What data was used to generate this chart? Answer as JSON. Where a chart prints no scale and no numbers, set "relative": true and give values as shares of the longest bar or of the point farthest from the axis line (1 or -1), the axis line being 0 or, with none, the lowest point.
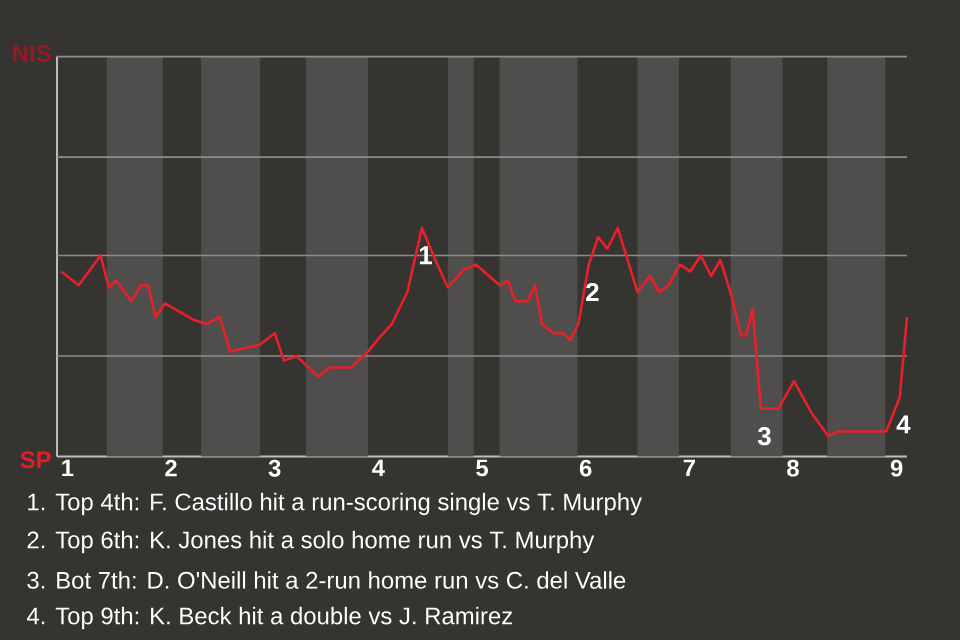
{
  "chart_data": {
    "type": "line",
    "relative": true,
    "series": [
      {
        "color": "#e8202a",
        "values": [
          0.81,
          0.75,
          0.88,
          0.74,
          0.77,
          0.68,
          0.75,
          0.75,
          0.61,
          0.67,
          0.6,
          0.58,
          0.61,
          0.46,
          0.49,
          0.54,
          0.42,
          0.44,
          0.35,
          0.39,
          0.39,
          0.46,
          0.53,
          0.58,
          0.72,
          1,
          0.86,
          0.74,
          0.82,
          0.84,
          0.75,
          0.77,
          0.68,
          0.68,
          0.75,
          0.58,
          0.54,
          0.54,
          0.51,
          0.58,
          0.84,
          0.96,
          0.91,
          1,
          0.72,
          0.79,
          0.72,
          0.75,
          0.84,
          0.81,
          0.88,
          0.79,
          0.86,
          0.7,
          0.53,
          0.53,
          0.65,
          0.21,
          0.21,
          0.33,
          0.19,
          0.09,
          0.11,
          0.11,
          0.26,
          0.61
        ],
        "x": [
          0.94,
          1.11,
          1.32,
          1.4,
          1.47,
          1.62,
          1.71,
          1.78,
          1.85,
          1.94,
          2.21,
          2.34,
          2.47,
          2.57,
          2.86,
          3.0,
          3.09,
          3.21,
          3.42,
          3.53,
          3.74,
          3.9,
          4.03,
          4.13,
          4.28,
          4.42,
          4.55,
          4.67,
          4.83,
          4.94,
          5.17,
          5.25,
          5.32,
          5.44,
          5.51,
          5.58,
          5.69,
          5.78,
          5.85,
          5.93,
          6.03,
          6.12,
          6.21,
          6.31,
          6.5,
          6.62,
          6.71,
          6.8,
          6.91,
          7.01,
          7.11,
          7.21,
          7.3,
          7.41,
          7.5,
          7.55,
          7.61,
          7.69,
          7.86,
          8.01,
          8.18,
          8.34,
          8.44,
          8.9,
          9.03,
          9.1
        ]
      }
    ],
    "xlim": [
      0.9,
      9.1
    ],
    "xticks": [
      1,
      2,
      3,
      4,
      5,
      6,
      7,
      8,
      9
    ],
    "ref_lines": [
      {
        "axis": "y",
        "value": 0.44,
        "color": "#8c8c8c"
      },
      {
        "axis": "y",
        "value": 0.88,
        "color": "#8c8c8c"
      },
      {
        "axis": "y",
        "value": 1.31,
        "color": "#8c8c8c"
      },
      {
        "axis": "y",
        "value": 1.75,
        "color": "#8c8c8c"
      }
    ],
    "marker": "none",
    "line_style": "solid",
    "bands": [
      {
        "axis": "x",
        "from": 1.38,
        "to": 1.92,
        "color": "#4f4e4c"
      },
      {
        "axis": "x",
        "from": 2.29,
        "to": 2.86,
        "color": "#4f4e4c"
      },
      {
        "axis": "x",
        "from": 3.3,
        "to": 3.9,
        "color": "#4f4e4c"
      },
      {
        "axis": "x",
        "from": 4.67,
        "to": 4.92,
        "color": "#4f4e4c"
      },
      {
        "axis": "x",
        "from": 5.17,
        "to": 5.92,
        "color": "#4f4e4c"
      },
      {
        "axis": "x",
        "from": 6.5,
        "to": 6.9,
        "color": "#4f4e4c"
      },
      {
        "axis": "x",
        "from": 7.4,
        "to": 7.9,
        "color": "#4f4e4c"
      },
      {
        "axis": "x",
        "from": 8.33,
        "to": 8.89,
        "color": "#4f4e4c"
      }
    ],
    "annotations": [
      "NIS",
      "SP",
      {
        "text": "1",
        "x": 4.42,
        "y": 1
      },
      {
        "text": "2",
        "x": 6.03,
        "y": 0.84
      },
      {
        "text": "3",
        "x": 7.69,
        "y": 0.21
      },
      {
        "text": "4",
        "x": 9.03,
        "y": 0.26
      },
      "1. Top 4th: F. Castillo hit a run-scoring single vs T. Murphy",
      "2. Top 6th: K. Jones hit a solo home run vs T. Murphy",
      "3. Bot 7th: D. O'Neill hit a 2-run home run vs C. del Valle",
      "4. Top 9th: K. Beck hit a double vs J. Ramirez"
    ]
  }
}
